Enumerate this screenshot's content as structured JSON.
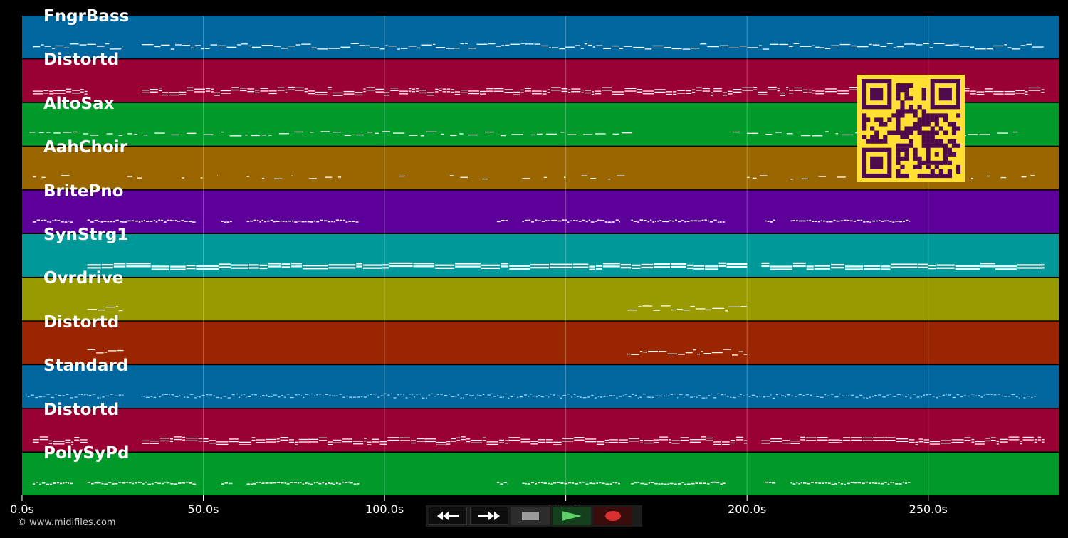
{
  "app": {
    "copyright": "© www.midifiles.com"
  },
  "timeline": {
    "duration_s": 286,
    "tick_labels": [
      "0.0s",
      "50.0s",
      "100.0s",
      "150.0s",
      "200.0s",
      "250.0s"
    ],
    "tick_values_s": [
      0,
      50,
      100,
      150,
      200,
      250
    ]
  },
  "tracks": [
    {
      "name": "FngrBass",
      "color": "#00669e",
      "pattern": "line",
      "segments": [
        [
          3,
          28
        ],
        [
          33,
          282
        ]
      ]
    },
    {
      "name": "Distortd",
      "color": "#990033",
      "pattern": "double",
      "segments": [
        [
          3,
          18
        ],
        [
          33,
          282
        ]
      ]
    },
    {
      "name": "AltoSax",
      "color": "#009a2b",
      "pattern": "dashed",
      "segments": [
        [
          2,
          170
        ],
        [
          196,
          275
        ]
      ]
    },
    {
      "name": "AahChoir",
      "color": "#996600",
      "pattern": "sparse",
      "segments": [
        [
          3,
          14
        ],
        [
          29,
          33
        ],
        [
          44,
          54
        ],
        [
          62,
          92
        ],
        [
          104,
          108
        ],
        [
          118,
          130
        ],
        [
          138,
          167
        ],
        [
          200,
          206
        ],
        [
          212,
          282
        ]
      ]
    },
    {
      "name": "BritePno",
      "color": "#5c0099",
      "pattern": "dense",
      "segments": [
        [
          3,
          14
        ],
        [
          18,
          48
        ],
        [
          55,
          58
        ],
        [
          62,
          93
        ],
        [
          131,
          134
        ],
        [
          138,
          165
        ],
        [
          168,
          194
        ],
        [
          205,
          208
        ],
        [
          212,
          245
        ]
      ]
    },
    {
      "name": "SynStrg1",
      "color": "#009999",
      "pattern": "thick",
      "segments": [
        [
          18,
          200
        ],
        [
          204,
          282
        ]
      ]
    },
    {
      "name": "Ovrdrive",
      "color": "#999900",
      "pattern": "line",
      "segments": [
        [
          18,
          28
        ],
        [
          167,
          200
        ]
      ]
    },
    {
      "name": "Distortd",
      "color": "#992600",
      "pattern": "line",
      "segments": [
        [
          18,
          28
        ],
        [
          167,
          200
        ]
      ]
    },
    {
      "name": "Standard",
      "color": "#00669e",
      "pattern": "dotted",
      "segments": [
        [
          1,
          28
        ],
        [
          33,
          280
        ]
      ]
    },
    {
      "name": "Distortd",
      "color": "#990033",
      "pattern": "double",
      "segments": [
        [
          3,
          18
        ],
        [
          33,
          200
        ],
        [
          204,
          282
        ]
      ]
    },
    {
      "name": "PolySyPd",
      "color": "#009a2b",
      "pattern": "dense",
      "segments": [
        [
          3,
          14
        ],
        [
          18,
          48
        ],
        [
          55,
          58
        ],
        [
          62,
          93
        ],
        [
          131,
          134
        ],
        [
          138,
          165
        ],
        [
          168,
          194
        ],
        [
          205,
          208
        ],
        [
          212,
          245
        ]
      ]
    }
  ],
  "transport": {
    "buttons": [
      {
        "id": "rewind",
        "icon": "rewind-icon"
      },
      {
        "id": "fast-forward",
        "icon": "fast-forward-icon"
      },
      {
        "id": "stop",
        "icon": "stop-icon"
      },
      {
        "id": "play",
        "icon": "play-icon",
        "color": "#5fd068"
      },
      {
        "id": "record",
        "icon": "record-icon",
        "color": "#d93030"
      }
    ]
  },
  "qr_code": {
    "icon": "qr-code-icon",
    "colors": {
      "fg": "#4d0a4d",
      "bg": "#ffe033"
    }
  }
}
